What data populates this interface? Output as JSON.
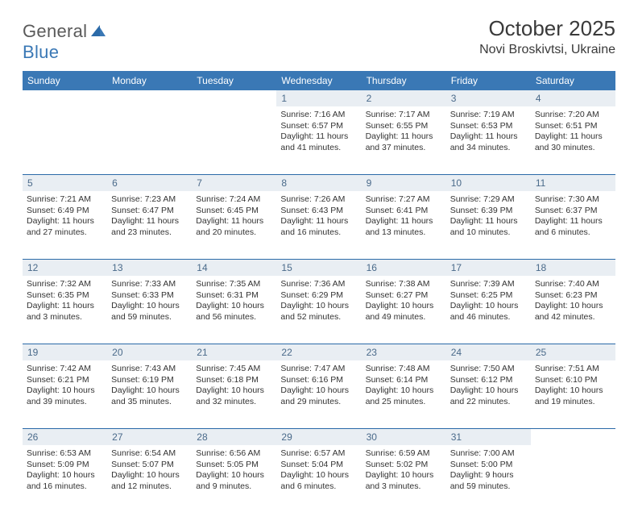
{
  "logo": {
    "part1": "General",
    "part2": "Blue"
  },
  "title": "October 2025",
  "location": "Novi Broskivtsi, Ukraine",
  "colors": {
    "header_bg": "#3a78b5",
    "header_text": "#ffffff",
    "daynum_bg": "#e9eef3",
    "daynum_text": "#4a6a8a",
    "rule": "#2b6aa8",
    "body_text": "#333333",
    "page_bg": "#ffffff"
  },
  "weekdays": [
    "Sunday",
    "Monday",
    "Tuesday",
    "Wednesday",
    "Thursday",
    "Friday",
    "Saturday"
  ],
  "weeks": [
    [
      null,
      null,
      null,
      {
        "n": "1",
        "sunrise": "7:16 AM",
        "sunset": "6:57 PM",
        "daylight": "11 hours and 41 minutes."
      },
      {
        "n": "2",
        "sunrise": "7:17 AM",
        "sunset": "6:55 PM",
        "daylight": "11 hours and 37 minutes."
      },
      {
        "n": "3",
        "sunrise": "7:19 AM",
        "sunset": "6:53 PM",
        "daylight": "11 hours and 34 minutes."
      },
      {
        "n": "4",
        "sunrise": "7:20 AM",
        "sunset": "6:51 PM",
        "daylight": "11 hours and 30 minutes."
      }
    ],
    [
      {
        "n": "5",
        "sunrise": "7:21 AM",
        "sunset": "6:49 PM",
        "daylight": "11 hours and 27 minutes."
      },
      {
        "n": "6",
        "sunrise": "7:23 AM",
        "sunset": "6:47 PM",
        "daylight": "11 hours and 23 minutes."
      },
      {
        "n": "7",
        "sunrise": "7:24 AM",
        "sunset": "6:45 PM",
        "daylight": "11 hours and 20 minutes."
      },
      {
        "n": "8",
        "sunrise": "7:26 AM",
        "sunset": "6:43 PM",
        "daylight": "11 hours and 16 minutes."
      },
      {
        "n": "9",
        "sunrise": "7:27 AM",
        "sunset": "6:41 PM",
        "daylight": "11 hours and 13 minutes."
      },
      {
        "n": "10",
        "sunrise": "7:29 AM",
        "sunset": "6:39 PM",
        "daylight": "11 hours and 10 minutes."
      },
      {
        "n": "11",
        "sunrise": "7:30 AM",
        "sunset": "6:37 PM",
        "daylight": "11 hours and 6 minutes."
      }
    ],
    [
      {
        "n": "12",
        "sunrise": "7:32 AM",
        "sunset": "6:35 PM",
        "daylight": "11 hours and 3 minutes."
      },
      {
        "n": "13",
        "sunrise": "7:33 AM",
        "sunset": "6:33 PM",
        "daylight": "10 hours and 59 minutes."
      },
      {
        "n": "14",
        "sunrise": "7:35 AM",
        "sunset": "6:31 PM",
        "daylight": "10 hours and 56 minutes."
      },
      {
        "n": "15",
        "sunrise": "7:36 AM",
        "sunset": "6:29 PM",
        "daylight": "10 hours and 52 minutes."
      },
      {
        "n": "16",
        "sunrise": "7:38 AM",
        "sunset": "6:27 PM",
        "daylight": "10 hours and 49 minutes."
      },
      {
        "n": "17",
        "sunrise": "7:39 AM",
        "sunset": "6:25 PM",
        "daylight": "10 hours and 46 minutes."
      },
      {
        "n": "18",
        "sunrise": "7:40 AM",
        "sunset": "6:23 PM",
        "daylight": "10 hours and 42 minutes."
      }
    ],
    [
      {
        "n": "19",
        "sunrise": "7:42 AM",
        "sunset": "6:21 PM",
        "daylight": "10 hours and 39 minutes."
      },
      {
        "n": "20",
        "sunrise": "7:43 AM",
        "sunset": "6:19 PM",
        "daylight": "10 hours and 35 minutes."
      },
      {
        "n": "21",
        "sunrise": "7:45 AM",
        "sunset": "6:18 PM",
        "daylight": "10 hours and 32 minutes."
      },
      {
        "n": "22",
        "sunrise": "7:47 AM",
        "sunset": "6:16 PM",
        "daylight": "10 hours and 29 minutes."
      },
      {
        "n": "23",
        "sunrise": "7:48 AM",
        "sunset": "6:14 PM",
        "daylight": "10 hours and 25 minutes."
      },
      {
        "n": "24",
        "sunrise": "7:50 AM",
        "sunset": "6:12 PM",
        "daylight": "10 hours and 22 minutes."
      },
      {
        "n": "25",
        "sunrise": "7:51 AM",
        "sunset": "6:10 PM",
        "daylight": "10 hours and 19 minutes."
      }
    ],
    [
      {
        "n": "26",
        "sunrise": "6:53 AM",
        "sunset": "5:09 PM",
        "daylight": "10 hours and 16 minutes."
      },
      {
        "n": "27",
        "sunrise": "6:54 AM",
        "sunset": "5:07 PM",
        "daylight": "10 hours and 12 minutes."
      },
      {
        "n": "28",
        "sunrise": "6:56 AM",
        "sunset": "5:05 PM",
        "daylight": "10 hours and 9 minutes."
      },
      {
        "n": "29",
        "sunrise": "6:57 AM",
        "sunset": "5:04 PM",
        "daylight": "10 hours and 6 minutes."
      },
      {
        "n": "30",
        "sunrise": "6:59 AM",
        "sunset": "5:02 PM",
        "daylight": "10 hours and 3 minutes."
      },
      {
        "n": "31",
        "sunrise": "7:00 AM",
        "sunset": "5:00 PM",
        "daylight": "9 hours and 59 minutes."
      },
      null
    ]
  ],
  "labels": {
    "sunrise": "Sunrise:",
    "sunset": "Sunset:",
    "daylight": "Daylight:"
  }
}
